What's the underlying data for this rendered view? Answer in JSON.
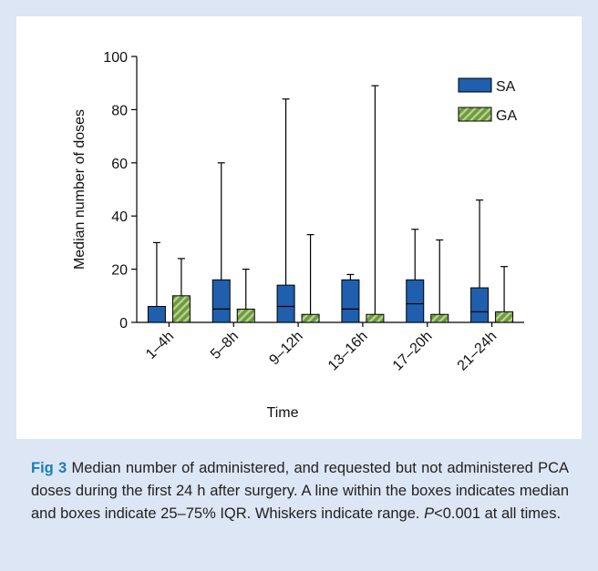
{
  "chart_data": {
    "type": "box",
    "x_label": "Time",
    "y_label": "Median number of doses",
    "categories": [
      "1–4h",
      "5–8h",
      "9–12h",
      "13–16h",
      "17–20h",
      "21–24h"
    ],
    "ylim": [
      0,
      100
    ],
    "yticks": [
      0,
      20,
      40,
      60,
      80,
      100
    ],
    "legend_position": "upper right",
    "series": [
      {
        "name": "SA",
        "color": "#1f5fad",
        "q1": [
          0,
          0,
          0,
          0,
          0,
          0
        ],
        "median": [
          null,
          5,
          6,
          5,
          7,
          4
        ],
        "q3": [
          6,
          16,
          14,
          16,
          16,
          13
        ],
        "max": [
          30,
          60,
          84,
          18,
          35,
          46
        ]
      },
      {
        "name": "GA",
        "color": "#6c9a40",
        "hatch": true,
        "q1": [
          0,
          0,
          0,
          0,
          0,
          0
        ],
        "q3": [
          10,
          5,
          3,
          3,
          3,
          4
        ],
        "max": [
          24,
          20,
          33,
          89,
          31,
          21
        ]
      }
    ]
  },
  "caption": {
    "label": "Fig 3",
    "text": "Median number of administered, and requested but not administered PCA doses during the first 24 h after surgery. A line within the boxes indicates median and boxes indicate 25–75% IQR. Whiskers indicate range.",
    "p_symbol": "P",
    "p_text": "<0.001 at all times."
  }
}
